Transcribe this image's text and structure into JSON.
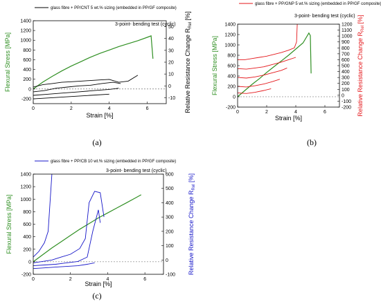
{
  "colors": {
    "stress": "#2f8f22",
    "panel_a": "#000000",
    "panel_b": "#e4161a",
    "panel_c": "#1414c8"
  },
  "chart_data": [
    {
      "type": "line",
      "caption": "(a)",
      "legend": "glass fibre + PP/CNT 5 wt.% sizing (embedded in PP/GF composite)",
      "annotation": "3-point- bending test (cyclic)",
      "xlabel": "Strain [%]",
      "ylabel": "Flexural Stress [MPa]",
      "y2label": "Relative Resistance Change R",
      "y2label_sub": "Rel",
      "y2label_unit": " [%]",
      "xlim": [
        0,
        7
      ],
      "ylim": [
        -300,
        1400
      ],
      "y2lim": [
        -15,
        55
      ],
      "xticks": [
        0,
        2,
        4,
        6
      ],
      "yticks": [
        -200,
        0,
        200,
        400,
        600,
        800,
        1000,
        1200,
        1400
      ],
      "y2ticks": [
        -10,
        0,
        10,
        20,
        30,
        40,
        50
      ],
      "series": [
        {
          "axis": "left",
          "color_key": "stress",
          "x": [
            0,
            0.5,
            1,
            1.5,
            2,
            2.5,
            3,
            3.5,
            4,
            4.5,
            5,
            5.5,
            6,
            6.2,
            6.3
          ],
          "y": [
            0,
            140,
            260,
            370,
            470,
            560,
            650,
            730,
            800,
            870,
            930,
            990,
            1060,
            1090,
            620
          ]
        },
        {
          "axis": "right",
          "color_key": "panel_a",
          "x": [
            0,
            0.5,
            1,
            1.5,
            2,
            2.5,
            3,
            3.5,
            4,
            4.5,
            5,
            5.5
          ],
          "y": [
            -1,
            1,
            2,
            3,
            3.5,
            4,
            4.5,
            5,
            5.5,
            3,
            4,
            9
          ]
        },
        {
          "axis": "right",
          "color_key": "panel_a",
          "x": [
            0,
            0.6,
            1.2,
            1.8,
            2.4,
            3,
            3.6,
            4.2,
            4.6
          ],
          "y": [
            -5,
            -4,
            -2,
            -1,
            0,
            0.5,
            2,
            3,
            2
          ]
        },
        {
          "axis": "right",
          "color_key": "panel_a",
          "x": [
            0,
            0.8,
            1.6,
            2.4,
            3.2,
            4,
            4.5
          ],
          "y": [
            -8,
            -7,
            -6,
            -5,
            -4,
            -3,
            -2
          ]
        },
        {
          "axis": "right",
          "color_key": "panel_a",
          "x": [
            0,
            1,
            2,
            3,
            4
          ],
          "y": [
            -11,
            -10,
            -9,
            -8,
            -7
          ]
        }
      ]
    },
    {
      "type": "line",
      "caption": "(b)",
      "legend": "glass fibre + PP/GNP 5 wt.% sizing (embedded in PP/GF composite)",
      "annotation": "3-point- bending test (cyclic)",
      "xlabel": "Strain [%]",
      "ylabel": "Flexural Stress [MPa]",
      "y2label": "Relative Resistance Change R",
      "y2label_sub": "Rel",
      "y2label_unit": " [%]",
      "xlim": [
        0,
        7
      ],
      "ylim": [
        -200,
        1400
      ],
      "y2lim": [
        -200,
        1200
      ],
      "xticks": [
        0,
        2,
        4,
        6
      ],
      "yticks": [
        -200,
        0,
        200,
        400,
        600,
        800,
        1000,
        1200,
        1400
      ],
      "y2ticks": [
        -200,
        -100,
        0,
        100,
        200,
        300,
        400,
        500,
        600,
        700,
        800,
        900,
        1000,
        1100,
        1200
      ],
      "series": [
        {
          "axis": "left",
          "color_key": "stress",
          "x": [
            0,
            0.5,
            1,
            1.5,
            2,
            2.5,
            3,
            3.5,
            4,
            4.5,
            4.9,
            5,
            5.05
          ],
          "y": [
            0,
            120,
            240,
            350,
            470,
            580,
            690,
            800,
            920,
            1040,
            1230,
            1180,
            450
          ]
        },
        {
          "axis": "right",
          "color_key": "panel_b",
          "x": [
            0,
            0.5,
            1,
            1.5,
            2,
            2.5,
            3,
            3.5,
            3.9,
            4.05,
            4.1
          ],
          "y": [
            600,
            600,
            620,
            640,
            660,
            690,
            720,
            760,
            800,
            900,
            1200
          ]
        },
        {
          "axis": "right",
          "color_key": "panel_b",
          "x": [
            0,
            0.6,
            1.2,
            1.8,
            2.4,
            3,
            3.5,
            4
          ],
          "y": [
            450,
            440,
            460,
            480,
            520,
            560,
            600,
            640
          ]
        },
        {
          "axis": "right",
          "color_key": "panel_b",
          "x": [
            0,
            0.6,
            1.2,
            1.8,
            2.4,
            3,
            3.4
          ],
          "y": [
            300,
            290,
            310,
            340,
            380,
            420,
            460
          ]
        },
        {
          "axis": "right",
          "color_key": "panel_b",
          "x": [
            0,
            0.6,
            1.2,
            1.8,
            2.4,
            2.9
          ],
          "y": [
            150,
            140,
            160,
            190,
            230,
            270
          ]
        },
        {
          "axis": "right",
          "color_key": "panel_b",
          "x": [
            0,
            0.6,
            1.2,
            1.8,
            2.3
          ],
          "y": [
            40,
            30,
            50,
            80,
            110
          ]
        }
      ]
    },
    {
      "type": "line",
      "caption": "(c)",
      "legend": "glass fibre + PP/CB 10 wt.% sizing (embedded in PP/GF composite)",
      "annotation": "3-point- bending test (cyclic)",
      "xlabel": "Strain [%]",
      "ylabel": "Flexural Stress [MPa]",
      "y2label": "Relative Resistance Change R",
      "y2label_sub": "Rel",
      "y2label_unit": " [%]",
      "xlim": [
        0,
        7
      ],
      "ylim": [
        -200,
        1400
      ],
      "y2lim": [
        -100,
        600
      ],
      "xticks": [
        0,
        2,
        4,
        6
      ],
      "yticks": [
        -200,
        0,
        200,
        400,
        600,
        800,
        1000,
        1200,
        1400
      ],
      "y2ticks": [
        -100,
        0,
        100,
        200,
        300,
        400,
        500,
        600
      ],
      "series": [
        {
          "axis": "left",
          "color_key": "stress",
          "x": [
            0,
            0.5,
            1,
            1.5,
            2,
            2.5,
            3,
            3.5,
            4,
            4.5,
            5,
            5.5,
            5.8
          ],
          "y": [
            0,
            110,
            220,
            320,
            420,
            520,
            610,
            700,
            780,
            860,
            940,
            1020,
            1070
          ]
        },
        {
          "axis": "right",
          "color_key": "panel_c",
          "x": [
            0,
            0.3,
            0.6,
            0.8,
            0.9,
            1.0
          ],
          "y": [
            20,
            60,
            120,
            200,
            400,
            600
          ]
        },
        {
          "axis": "right",
          "color_key": "panel_c",
          "x": [
            0,
            0.5,
            1,
            1.5,
            2,
            2.5,
            2.8,
            3.0,
            3.3,
            3.6,
            3.8
          ],
          "y": [
            -20,
            -10,
            0,
            20,
            40,
            80,
            150,
            400,
            480,
            470,
            300
          ]
        },
        {
          "axis": "right",
          "color_key": "panel_c",
          "x": [
            0,
            0.6,
            1.2,
            1.8,
            2.4,
            2.9,
            3.2,
            3.5,
            3.6
          ],
          "y": [
            -40,
            -35,
            -30,
            -20,
            -10,
            20,
            200,
            350,
            260
          ]
        },
        {
          "axis": "right",
          "color_key": "panel_c",
          "x": [
            0,
            0.6,
            1.2,
            1.8,
            2.4,
            2.9,
            3.3
          ],
          "y": [
            -60,
            -55,
            -50,
            -45,
            -40,
            -30,
            -20
          ]
        }
      ]
    }
  ]
}
